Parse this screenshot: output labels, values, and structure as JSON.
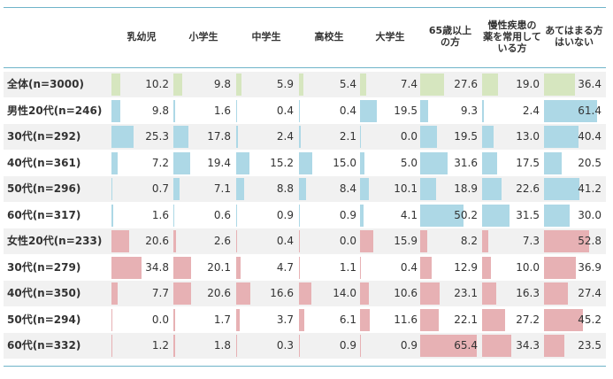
{
  "chart_data": {
    "type": "table",
    "columns": [
      "乳幼児",
      "小学生",
      "中学生",
      "高校生",
      "大学生",
      "65歳以上\nの方",
      "慢性疾患の\n薬を常用して\nいる方",
      "あてはまる方\nはいない"
    ],
    "rows": [
      {
        "label": "全体(n=3000)",
        "group": "total",
        "values": [
          10.2,
          9.8,
          5.9,
          5.4,
          7.4,
          27.6,
          19.0,
          36.4
        ]
      },
      {
        "label": "男性20代(n=246)",
        "group": "male",
        "values": [
          9.8,
          1.6,
          0.4,
          0.4,
          19.5,
          9.3,
          2.4,
          61.4
        ]
      },
      {
        "label": "30代(n=292)",
        "group": "male",
        "values": [
          25.3,
          17.8,
          2.4,
          2.1,
          0.0,
          19.5,
          13.0,
          40.4
        ]
      },
      {
        "label": "40代(n=361)",
        "group": "male",
        "values": [
          7.2,
          19.4,
          15.2,
          15.0,
          5.0,
          31.6,
          17.5,
          20.5
        ]
      },
      {
        "label": "50代(n=296)",
        "group": "male",
        "values": [
          0.7,
          7.1,
          8.8,
          8.4,
          10.1,
          18.9,
          22.6,
          41.2
        ]
      },
      {
        "label": "60代(n=317)",
        "group": "male",
        "values": [
          1.6,
          0.6,
          0.9,
          0.9,
          4.1,
          50.2,
          31.5,
          30.0
        ]
      },
      {
        "label": "女性20代(n=233)",
        "group": "female",
        "values": [
          20.6,
          2.6,
          0.4,
          0.0,
          15.9,
          8.2,
          7.3,
          52.8
        ]
      },
      {
        "label": "30代(n=279)",
        "group": "female",
        "values": [
          34.8,
          20.1,
          4.7,
          1.1,
          0.4,
          12.9,
          10.0,
          36.9
        ]
      },
      {
        "label": "40代(n=350)",
        "group": "female",
        "values": [
          7.7,
          20.6,
          16.6,
          14.0,
          10.6,
          23.1,
          16.3,
          27.4
        ]
      },
      {
        "label": "50代(n=294)",
        "group": "female",
        "values": [
          0.0,
          1.7,
          3.7,
          6.1,
          11.6,
          22.1,
          27.2,
          45.2
        ]
      },
      {
        "label": "60代(n=332)",
        "group": "female",
        "values": [
          1.2,
          1.8,
          0.3,
          0.9,
          0.9,
          65.4,
          34.3,
          23.5
        ]
      }
    ],
    "bar_max": 70,
    "colors": {
      "total": "#d6e6bf",
      "male": "#add8e6",
      "female": "#e7b1b4",
      "row_alt": "#f1f1f1",
      "rule": "#6fb4c9"
    }
  }
}
